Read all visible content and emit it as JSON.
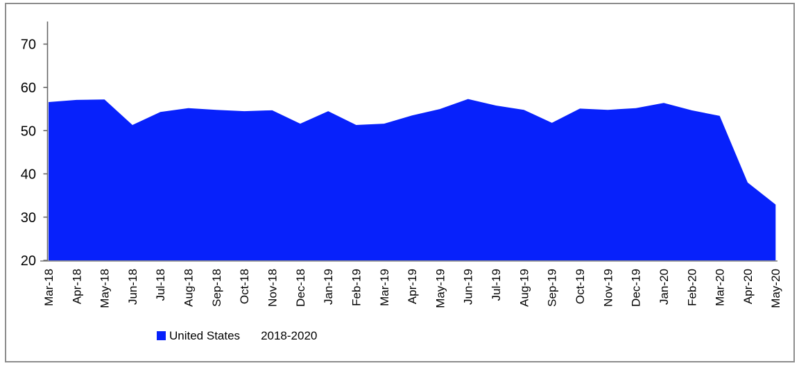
{
  "chart_data": {
    "type": "area",
    "title": "",
    "categories": [
      "Mar-18",
      "Apr-18",
      "May-18",
      "Jun-18",
      "Jul-18",
      "Aug-18",
      "Sep-18",
      "Oct-18",
      "Nov-18",
      "Dec-18",
      "Jan-19",
      "Feb-19",
      "Mar-19",
      "Apr-19",
      "May-19",
      "Jun-19",
      "Jul-19",
      "Aug-19",
      "Sep-19",
      "Oct-19",
      "Nov-19",
      "Dec-19",
      "Jan-20",
      "Feb-20",
      "Mar-20",
      "Apr-20",
      "May-20"
    ],
    "series": [
      {
        "name": "United States",
        "color": "#0721fb",
        "values": [
          56.6,
          57.1,
          57.2,
          51.3,
          54.3,
          55.2,
          54.8,
          54.5,
          54.7,
          51.6,
          54.5,
          51.3,
          51.6,
          53.5,
          55.0,
          57.3,
          55.8,
          54.8,
          51.8,
          55.1,
          54.8,
          55.2,
          56.4,
          54.7,
          53.4,
          38.0,
          32.9
        ]
      }
    ],
    "period_label": "2018-2020",
    "xlabel": "",
    "ylabel": "",
    "ylim": [
      20,
      75
    ],
    "yticks": [
      20,
      30,
      40,
      50,
      60,
      70
    ],
    "grid": false,
    "legend_position": "bottom",
    "colors": {
      "area_fill": "#0721fb",
      "axis_line": "#8c8c8c",
      "tick_mark": "#666666",
      "label_text": "#000000",
      "outer_border": "#8c8c8c",
      "background": "#ffffff"
    }
  }
}
